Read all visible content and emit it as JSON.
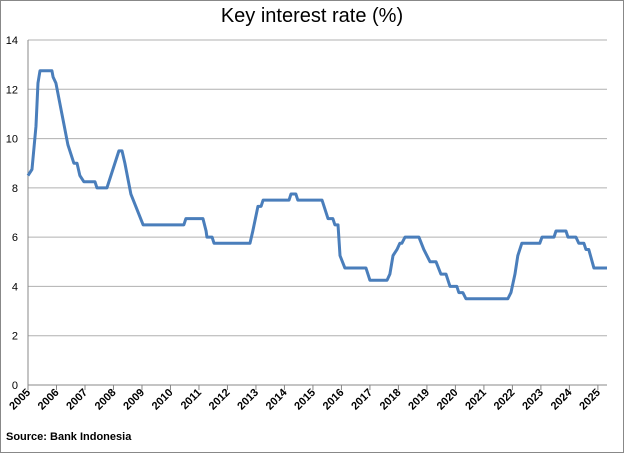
{
  "chart_data": {
    "type": "line",
    "title": "Key interest rate (%)",
    "source": "Source:  Bank Indonesia",
    "x": [
      2005,
      2005.14,
      2005.28,
      2005.35,
      2005.42,
      2005.84,
      2005.88,
      2005.98,
      2006.19,
      2006.4,
      2006.61,
      2006.72,
      2006.82,
      2006.96,
      2007.35,
      2007.42,
      2007.77,
      2008.19,
      2008.3,
      2008.4,
      2008.61,
      2009.04,
      2010.47,
      2010.54,
      2011.14,
      2011.25,
      2011.28,
      2011.46,
      2011.53,
      2012.79,
      2012.89,
      2013.07,
      2013.18,
      2013.25,
      2014.16,
      2014.23,
      2014.4,
      2014.47,
      2015.32,
      2015.53,
      2015.7,
      2015.77,
      2015.88,
      2015.95,
      2016.12,
      2016.86,
      2017,
      2017.6,
      2017.7,
      2017.81,
      2017.95,
      2018.05,
      2018.12,
      2018.23,
      2018.72,
      2018.89,
      2019.11,
      2019.32,
      2019.49,
      2019.67,
      2019.81,
      2020.05,
      2020.12,
      2020.26,
      2020.37,
      2021.84,
      2021.95,
      2022.09,
      2022.19,
      2022.33,
      2022.96,
      2023.04,
      2023.46,
      2023.53,
      2023.88,
      2023.95,
      2024.23,
      2024.33,
      2024.51,
      2024.58,
      2024.68,
      2024.86,
      2025.32
    ],
    "series": [
      {
        "name": "Key interest rate",
        "color": "#4a7ebb",
        "values": [
          8.5,
          8.75,
          10.5,
          12.25,
          12.75,
          12.75,
          12.5,
          12.25,
          11,
          9.75,
          9,
          9,
          8.5,
          8.25,
          8.25,
          8,
          8,
          9.5,
          9.5,
          9,
          7.75,
          6.5,
          6.5,
          6.75,
          6.75,
          6.25,
          6,
          6,
          5.75,
          5.75,
          6.25,
          7.25,
          7.25,
          7.5,
          7.5,
          7.75,
          7.75,
          7.5,
          7.5,
          6.75,
          6.75,
          6.5,
          6.5,
          5.25,
          4.75,
          4.75,
          4.25,
          4.25,
          4.5,
          5.25,
          5.5,
          5.75,
          5.75,
          6,
          6,
          5.5,
          5,
          5,
          4.5,
          4.5,
          4,
          4,
          3.75,
          3.75,
          3.5,
          3.5,
          3.75,
          4.5,
          5.25,
          5.75,
          5.75,
          6,
          6,
          6.25,
          6.25,
          6,
          6,
          5.75,
          5.75,
          5.5,
          5.5,
          4.75,
          4.75
        ]
      }
    ],
    "xlim": [
      2005,
      2025.32
    ],
    "xticks": [
      2005,
      2006,
      2007,
      2008,
      2009,
      2010,
      2011,
      2012,
      2013,
      2014,
      2015,
      2016,
      2017,
      2018,
      2019,
      2020,
      2021,
      2022,
      2023,
      2024,
      2025
    ],
    "ylim": [
      0,
      14
    ],
    "yticks": [
      0,
      2,
      4,
      6,
      8,
      10,
      12,
      14
    ],
    "grid": true
  }
}
